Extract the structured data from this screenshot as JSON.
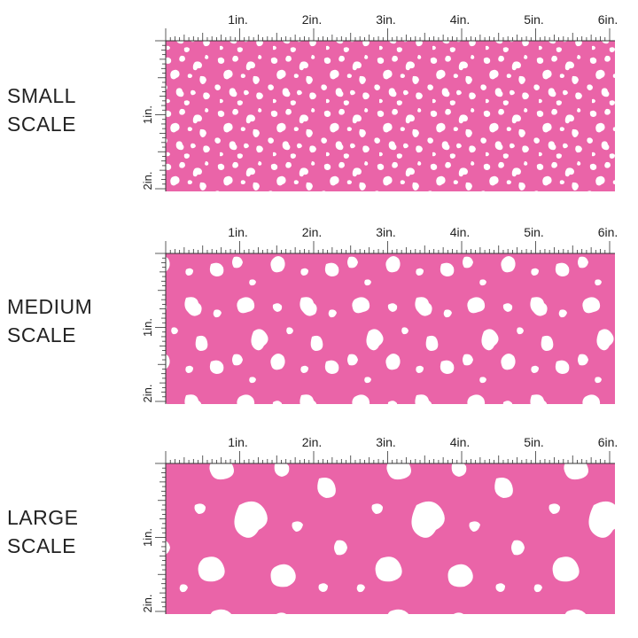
{
  "fill_color": "#ea64a8",
  "spot_color": "#ffffff",
  "panels": [
    {
      "label_line1": "SMALL",
      "label_line2": "SCALE",
      "ruler_labels": [
        "1in.",
        "2in.",
        "3in.",
        "4in.",
        "5in.",
        "6in."
      ],
      "vertical_labels": [
        "1in.",
        "2in."
      ]
    },
    {
      "label_line1": "MEDIUM",
      "label_line2": "SCALE",
      "ruler_labels": [
        "1in.",
        "2in.",
        "3in.",
        "4in.",
        "5in.",
        "6in."
      ],
      "vertical_labels": [
        "1in.",
        "2in."
      ]
    },
    {
      "label_line1": "LARGE",
      "label_line2": "SCALE",
      "ruler_labels": [
        "1in.",
        "2in.",
        "3in.",
        "4in.",
        "5in.",
        "6in."
      ],
      "vertical_labels": [
        "1in.",
        "2in."
      ]
    }
  ]
}
